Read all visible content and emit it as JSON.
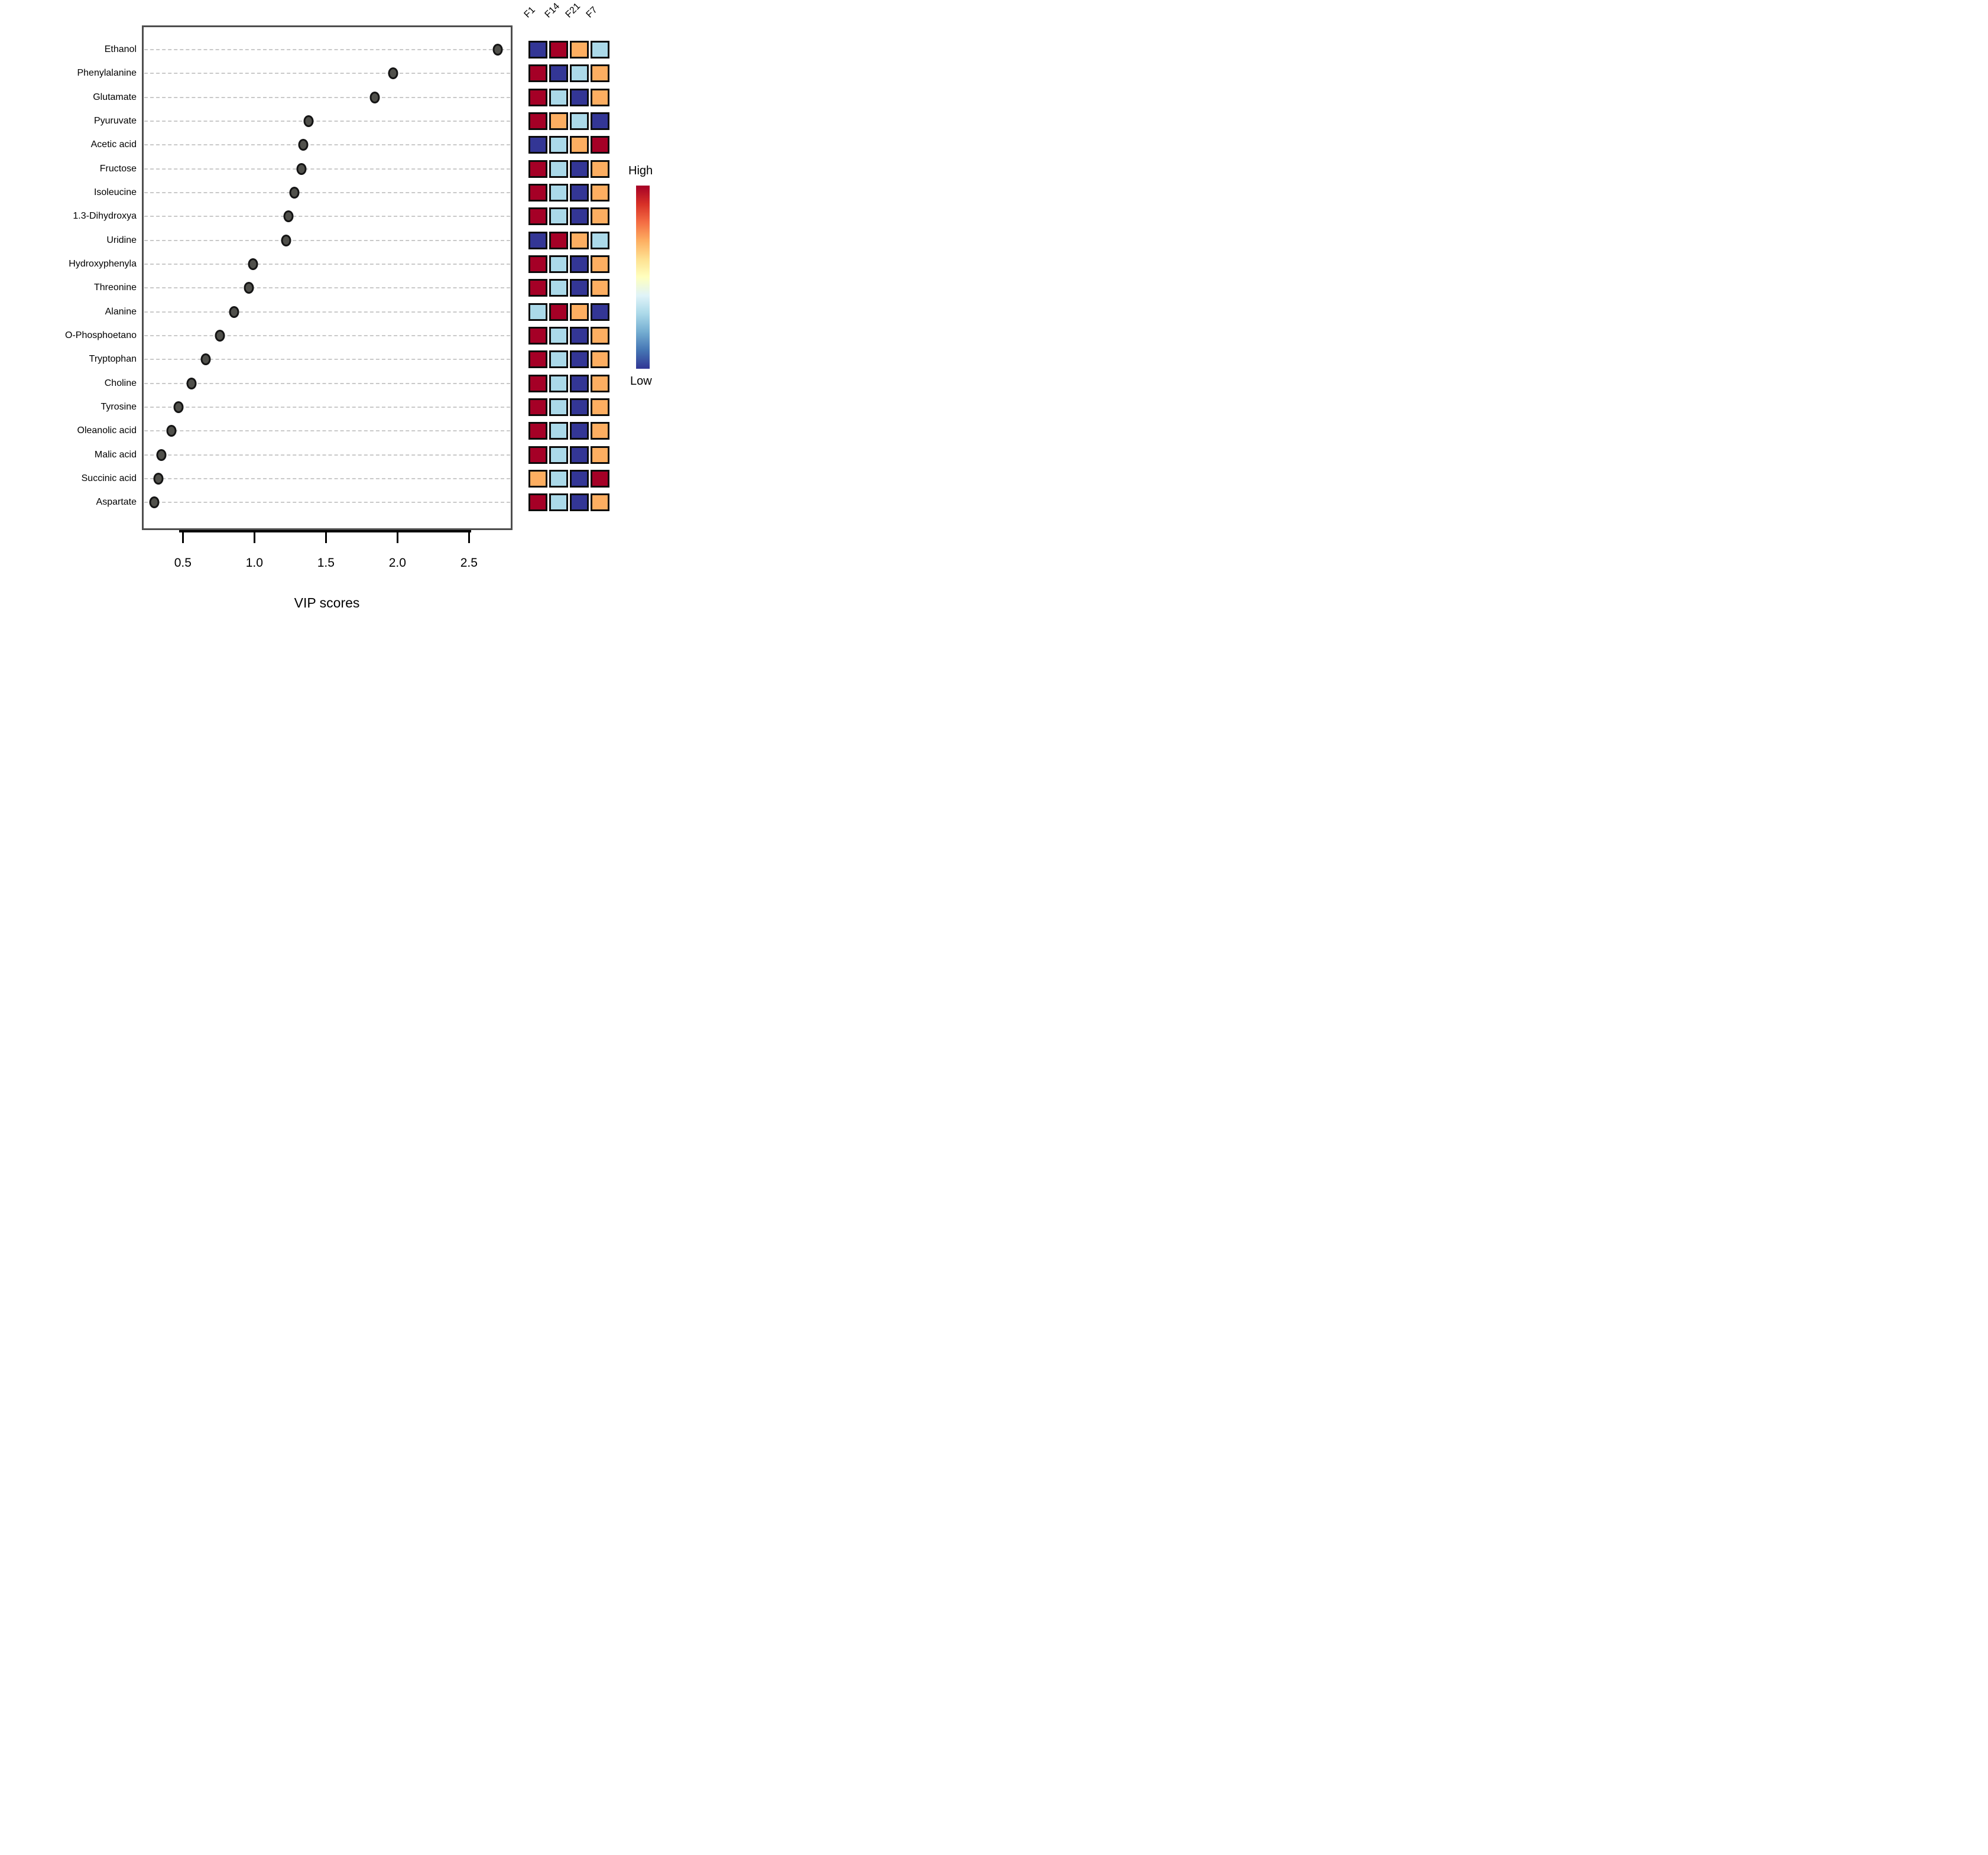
{
  "chart_data": {
    "type": "scatter",
    "title": "",
    "xlabel": "VIP scores",
    "x_ticks": [
      "0.5",
      "1.0",
      "1.5",
      "2.0",
      "2.5"
    ],
    "x_tick_values": [
      0.5,
      1.0,
      1.5,
      2.0,
      2.5
    ],
    "xlim": [
      0.21,
      2.87
    ],
    "grid": "dashed-horizontal",
    "legend_position": "right",
    "legend": {
      "high_label": "High",
      "low_label": "Low"
    },
    "heatmap_columns": [
      "F1",
      "F14",
      "F21",
      "F7"
    ],
    "level_colors": {
      "high": "#a50026",
      "mid-high": "#fdae61",
      "mid-low": "#abd9e9",
      "low": "#333695"
    },
    "dot_color": "#50504b",
    "rows": [
      {
        "label": "Ethanol",
        "vip": 2.7,
        "levels": [
          "low",
          "high",
          "mid-high",
          "mid-low"
        ]
      },
      {
        "label": "Phenylalanine",
        "vip": 1.97,
        "levels": [
          "high",
          "low",
          "mid-low",
          "mid-high"
        ]
      },
      {
        "label": "Glutamate",
        "vip": 1.84,
        "levels": [
          "high",
          "mid-low",
          "low",
          "mid-high"
        ]
      },
      {
        "label": "Pyuruvate",
        "vip": 1.38,
        "levels": [
          "high",
          "mid-high",
          "mid-low",
          "low"
        ]
      },
      {
        "label": "Acetic acid",
        "vip": 1.34,
        "levels": [
          "low",
          "mid-low",
          "mid-high",
          "high"
        ]
      },
      {
        "label": "Fructose",
        "vip": 1.33,
        "levels": [
          "high",
          "mid-low",
          "low",
          "mid-high"
        ]
      },
      {
        "label": "Isoleucine",
        "vip": 1.28,
        "levels": [
          "high",
          "mid-low",
          "low",
          "mid-high"
        ]
      },
      {
        "label": "1.3-Dihydroxya",
        "vip": 1.24,
        "levels": [
          "high",
          "mid-low",
          "low",
          "mid-high"
        ]
      },
      {
        "label": "Uridine",
        "vip": 1.22,
        "levels": [
          "low",
          "high",
          "mid-high",
          "mid-low"
        ]
      },
      {
        "label": "Hydroxyphenyla",
        "vip": 0.99,
        "levels": [
          "high",
          "mid-low",
          "low",
          "mid-high"
        ]
      },
      {
        "label": "Threonine",
        "vip": 0.96,
        "levels": [
          "high",
          "mid-low",
          "low",
          "mid-high"
        ]
      },
      {
        "label": "Alanine",
        "vip": 0.86,
        "levels": [
          "mid-low",
          "high",
          "mid-high",
          "low"
        ]
      },
      {
        "label": "O-Phosphoetano",
        "vip": 0.76,
        "levels": [
          "high",
          "mid-low",
          "low",
          "mid-high"
        ]
      },
      {
        "label": "Tryptophan",
        "vip": 0.66,
        "levels": [
          "high",
          "mid-low",
          "low",
          "mid-high"
        ]
      },
      {
        "label": "Choline",
        "vip": 0.56,
        "levels": [
          "high",
          "mid-low",
          "low",
          "mid-high"
        ]
      },
      {
        "label": "Tyrosine",
        "vip": 0.47,
        "levels": [
          "high",
          "mid-low",
          "low",
          "mid-high"
        ]
      },
      {
        "label": "Oleanolic acid",
        "vip": 0.42,
        "levels": [
          "high",
          "mid-low",
          "low",
          "mid-high"
        ]
      },
      {
        "label": "Malic acid",
        "vip": 0.35,
        "levels": [
          "high",
          "mid-low",
          "low",
          "mid-high"
        ]
      },
      {
        "label": "Succinic acid",
        "vip": 0.33,
        "levels": [
          "mid-high",
          "mid-low",
          "low",
          "high"
        ]
      },
      {
        "label": "Aspartate",
        "vip": 0.3,
        "levels": [
          "high",
          "mid-low",
          "low",
          "mid-high"
        ]
      }
    ],
    "colorbar_gradient": [
      "#a50026",
      "#d73027",
      "#f46d43",
      "#fdae61",
      "#fee090",
      "#ffffbf",
      "#e0f3f8",
      "#abd9e9",
      "#74add1",
      "#4575b4",
      "#313695"
    ]
  }
}
